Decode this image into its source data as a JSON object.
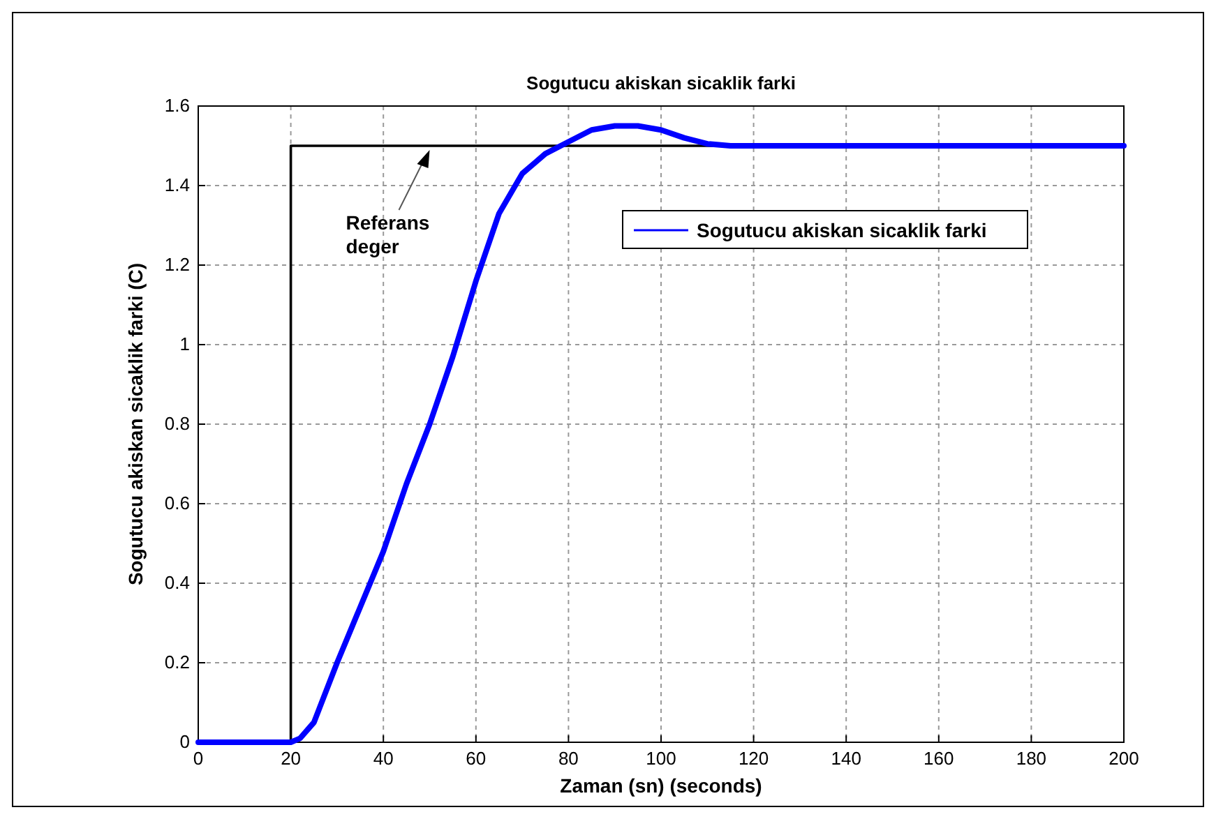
{
  "chart_data": {
    "type": "line",
    "title": "Sogutucu akiskan sicaklik farki",
    "xlabel": "Zaman (sn) (seconds)",
    "ylabel": "Sogutucu akiskan sicaklik farki (C)",
    "xlim": [
      0,
      200
    ],
    "xticks": [
      0,
      20,
      40,
      60,
      80,
      100,
      120,
      140,
      160,
      180,
      200
    ],
    "ylim": [
      0,
      1.6
    ],
    "yticks": [
      0,
      0.2,
      0.4,
      0.6,
      0.8,
      1,
      1.2,
      1.4,
      1.6
    ],
    "grid": true,
    "legend": "top right",
    "line_style": "solid",
    "series": [
      {
        "type": "step",
        "color": "#000000",
        "x": [
          0,
          20,
          200
        ],
        "values": [
          0,
          1.5,
          1.5
        ]
      },
      {
        "name": "Sogutucu akiskan sicaklik farki",
        "color": "#0000ff",
        "x": [
          0,
          20,
          22,
          25,
          30,
          35,
          40,
          45,
          50,
          55,
          60,
          65,
          70,
          75,
          80,
          85,
          90,
          95,
          100,
          105,
          110,
          115,
          120,
          200
        ],
        "values": [
          0,
          0,
          0.01,
          0.05,
          0.2,
          0.34,
          0.48,
          0.65,
          0.8,
          0.97,
          1.16,
          1.33,
          1.43,
          1.48,
          1.51,
          1.54,
          1.55,
          1.55,
          1.54,
          1.52,
          1.505,
          1.5,
          1.5,
          1.5
        ]
      }
    ],
    "annotations": [
      {
        "text": "Referans\ndeger",
        "x": 50,
        "y": 1.5
      }
    ]
  }
}
